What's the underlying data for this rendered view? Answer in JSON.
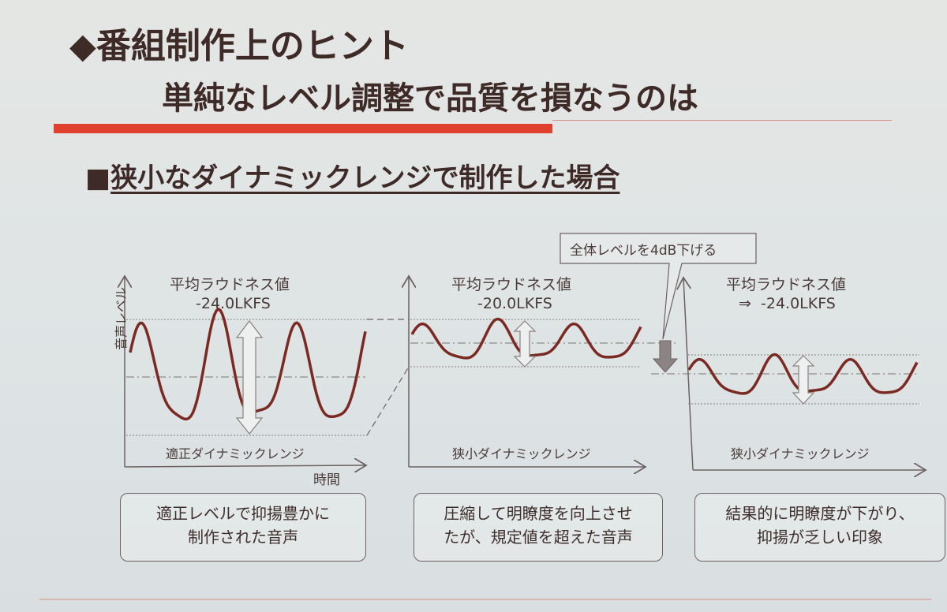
{
  "slide": {
    "title": "番組制作上のヒント",
    "subtitle": "単純なレベル調整で品質を損なうのは",
    "heading": "狭小なダイナミックレンジで制作した場合",
    "accent_color": "#e0412f",
    "wave_color": "#7a2a22"
  },
  "callout": "全体レベルを4dB下げる",
  "panels": [
    {
      "label": "平均ラウドネス値",
      "value": "-24.0LKFS",
      "range_label": "適正ダイナミックレンジ",
      "y_axis": "音声レベル",
      "x_axis": "時間",
      "description": [
        "適正レベルで抑揚豊かに",
        "制作された音声"
      ]
    },
    {
      "label": "平均ラウドネス値",
      "value": "-20.0LKFS",
      "range_label": "狭小ダイナミックレンジ",
      "description": [
        "圧縮して明瞭度を向上させ",
        "たが、規定値を超えた音声"
      ]
    },
    {
      "label": "平均ラウドネス値",
      "value": "⇒  -24.0LKFS",
      "range_label": "狭小ダイナミックレンジ",
      "description": [
        "結果的に明瞭度が下がり、",
        "抑揚が乏しい印象"
      ]
    }
  ]
}
